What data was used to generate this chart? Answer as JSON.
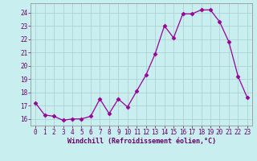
{
  "x": [
    0,
    1,
    2,
    3,
    4,
    5,
    6,
    7,
    8,
    9,
    10,
    11,
    12,
    13,
    14,
    15,
    16,
    17,
    18,
    19,
    20,
    21,
    22,
    23
  ],
  "y": [
    17.2,
    16.3,
    16.2,
    15.9,
    16.0,
    16.0,
    16.2,
    17.5,
    16.4,
    17.5,
    16.9,
    18.1,
    19.3,
    20.9,
    23.0,
    22.1,
    23.9,
    23.9,
    24.2,
    24.2,
    23.3,
    21.8,
    19.2,
    17.6
  ],
  "line_color": "#990099",
  "marker": "D",
  "marker_size": 2.5,
  "bg_color": "#c8eef0",
  "grid_color": "#aacccc",
  "xlabel": "Windchill (Refroidissement éolien,°C)",
  "xlabel_color": "#660066",
  "tick_color": "#660066",
  "ylim": [
    15.5,
    24.7
  ],
  "xlim": [
    -0.5,
    23.5
  ],
  "yticks": [
    16,
    17,
    18,
    19,
    20,
    21,
    22,
    23,
    24
  ],
  "xticks": [
    0,
    1,
    2,
    3,
    4,
    5,
    6,
    7,
    8,
    9,
    10,
    11,
    12,
    13,
    14,
    15,
    16,
    17,
    18,
    19,
    20,
    21,
    22,
    23
  ],
  "tick_fontsize": 5.5,
  "xlabel_fontsize": 6.0
}
